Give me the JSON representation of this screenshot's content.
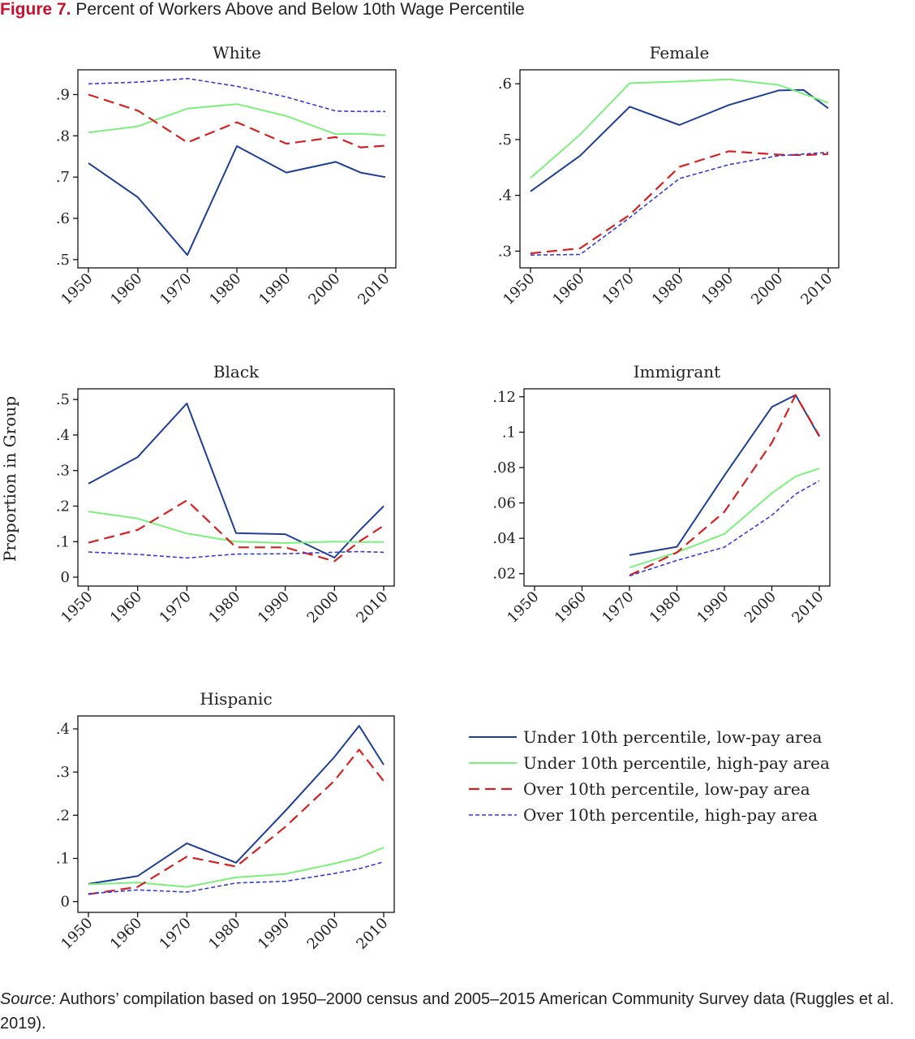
{
  "figure": {
    "label": "Figure 7.",
    "title": "Percent of Workers Above and Below 10th Wage Percentile",
    "ylabel": "Proportion in Group",
    "source_label": "Source:",
    "source_text": "Authors’ compilation based on 1950–2000 census and 2005–2015 American Community Survey data (Ruggles et al. 2019)."
  },
  "colors": {
    "under_low": "#1f3f96",
    "under_high": "#7cf07c",
    "over_low": "#d32222",
    "over_high": "#3a3ad6"
  },
  "legend": [
    {
      "label": "Under 10th percentile, low-pay area",
      "series": "under_low"
    },
    {
      "label": "Under 10th percentile, high-pay area",
      "series": "under_high"
    },
    {
      "label": "Over 10th percentile, low-pay area",
      "series": "over_low"
    },
    {
      "label": "Over 10th percentile, high-pay area",
      "series": "over_high"
    }
  ],
  "chart_data": [
    {
      "type": "line",
      "title": "White",
      "x": [
        1950,
        1960,
        1970,
        1980,
        1990,
        2000,
        2005,
        2010
      ],
      "xticks": [
        "1950",
        "1960",
        "1970",
        "1980",
        "1990",
        "2000",
        "2010"
      ],
      "yticks": [
        0.5,
        0.6,
        0.7,
        0.8,
        0.9
      ],
      "ytick_labels": [
        ".5",
        ".6",
        ".7",
        ".8",
        ".9"
      ],
      "ylim": [
        0.48,
        0.96
      ],
      "series": [
        {
          "name": "Under 10th percentile, low-pay area",
          "key": "under_low",
          "values": [
            0.734,
            0.651,
            0.511,
            0.775,
            0.711,
            0.737,
            0.711,
            0.7
          ]
        },
        {
          "name": "Under 10th percentile, high-pay area",
          "key": "under_high",
          "values": [
            0.808,
            0.823,
            0.866,
            0.877,
            0.848,
            0.804,
            0.805,
            0.801
          ]
        },
        {
          "name": "Over 10th percentile, low-pay area",
          "key": "over_low",
          "values": [
            0.9,
            0.861,
            0.784,
            0.833,
            0.781,
            0.797,
            0.772,
            0.776
          ]
        },
        {
          "name": "Over 10th percentile, high-pay area",
          "key": "over_high",
          "values": [
            0.926,
            0.93,
            0.939,
            0.92,
            0.894,
            0.86,
            0.859,
            0.859
          ]
        }
      ]
    },
    {
      "type": "line",
      "title": "Female",
      "x": [
        1950,
        1960,
        1970,
        1980,
        1990,
        2000,
        2005,
        2010
      ],
      "xticks": [
        "1950",
        "1960",
        "1970",
        "1980",
        "1990",
        "2000",
        "2010"
      ],
      "yticks": [
        0.3,
        0.4,
        0.5,
        0.6
      ],
      "ytick_labels": [
        ".3",
        ".4",
        ".5",
        ".6"
      ],
      "ylim": [
        0.27,
        0.625
      ],
      "series": [
        {
          "name": "Under 10th percentile, low-pay area",
          "key": "under_low",
          "values": [
            0.407,
            0.471,
            0.559,
            0.526,
            0.562,
            0.588,
            0.589,
            0.556
          ]
        },
        {
          "name": "Under 10th percentile, high-pay area",
          "key": "under_high",
          "values": [
            0.431,
            0.509,
            0.601,
            0.604,
            0.608,
            0.598,
            0.582,
            0.566
          ]
        },
        {
          "name": "Over 10th percentile, low-pay area",
          "key": "over_low",
          "values": [
            0.296,
            0.305,
            0.365,
            0.451,
            0.479,
            0.473,
            0.472,
            0.474
          ]
        },
        {
          "name": "Over 10th percentile, high-pay area",
          "key": "over_high",
          "values": [
            0.293,
            0.294,
            0.36,
            0.43,
            0.455,
            0.471,
            0.474,
            0.477
          ]
        }
      ]
    },
    {
      "type": "line",
      "title": "Black",
      "x": [
        1950,
        1960,
        1970,
        1980,
        1990,
        2000,
        2005,
        2010
      ],
      "xticks": [
        "1950",
        "1960",
        "1970",
        "1980",
        "1990",
        "2000",
        "2010"
      ],
      "yticks": [
        0,
        0.1,
        0.2,
        0.3,
        0.4,
        0.5
      ],
      "ytick_labels": [
        "0",
        ".1",
        ".2",
        ".3",
        ".4",
        ".5"
      ],
      "ylim": [
        -0.025,
        0.53
      ],
      "series": [
        {
          "name": "Under 10th percentile, low-pay area",
          "key": "under_low",
          "values": [
            0.263,
            0.338,
            0.489,
            0.124,
            0.121,
            0.055,
            0.13,
            0.2
          ]
        },
        {
          "name": "Under 10th percentile, high-pay area",
          "key": "under_high",
          "values": [
            0.185,
            0.165,
            0.123,
            0.1,
            0.096,
            0.1,
            0.099,
            0.099
          ]
        },
        {
          "name": "Over 10th percentile, low-pay area",
          "key": "over_low",
          "values": [
            0.097,
            0.133,
            0.216,
            0.084,
            0.084,
            0.045,
            0.1,
            0.145
          ]
        },
        {
          "name": "Over 10th percentile, high-pay area",
          "key": "over_high",
          "values": [
            0.071,
            0.064,
            0.054,
            0.065,
            0.066,
            0.07,
            0.072,
            0.07
          ]
        }
      ]
    },
    {
      "type": "line",
      "title": "Immigrant",
      "x": [
        1970,
        1980,
        1990,
        2000,
        2005,
        2010
      ],
      "xticks": [
        "1950",
        "1960",
        "1970",
        "1980",
        "1990",
        "2000",
        "2010"
      ],
      "yticks": [
        0.02,
        0.04,
        0.06,
        0.08,
        0.1,
        0.12
      ],
      "ytick_labels": [
        ".02",
        ".04",
        ".06",
        ".08",
        ".1",
        ".12"
      ],
      "ylim": [
        0.013,
        0.1245
      ],
      "series": [
        {
          "name": "Under 10th percentile, low-pay area",
          "key": "under_low",
          "values": [
            0.0305,
            0.0352,
            0.0755,
            0.1142,
            0.121,
            0.0975
          ]
        },
        {
          "name": "Under 10th percentile, high-pay area",
          "key": "under_high",
          "values": [
            0.0235,
            0.032,
            0.0425,
            0.0655,
            0.075,
            0.0795
          ]
        },
        {
          "name": "Over 10th percentile, low-pay area",
          "key": "over_low",
          "values": [
            0.019,
            0.032,
            0.055,
            0.094,
            0.121,
            0.098
          ]
        },
        {
          "name": "Over 10th percentile, high-pay area",
          "key": "over_high",
          "values": [
            0.0188,
            0.0275,
            0.035,
            0.053,
            0.065,
            0.0725
          ]
        }
      ]
    },
    {
      "type": "line",
      "title": "Hispanic",
      "x": [
        1950,
        1960,
        1970,
        1980,
        1990,
        2000,
        2005,
        2010
      ],
      "xticks": [
        "1950",
        "1960",
        "1970",
        "1980",
        "1990",
        "2000",
        "2010"
      ],
      "yticks": [
        0,
        0.1,
        0.2,
        0.3,
        0.4
      ],
      "ytick_labels": [
        "0",
        ".1",
        ".2",
        ".3",
        ".4"
      ],
      "ylim": [
        -0.025,
        0.43
      ],
      "series": [
        {
          "name": "Under 10th percentile, low-pay area",
          "key": "under_low",
          "values": [
            0.041,
            0.059,
            0.135,
            0.09,
            0.21,
            0.335,
            0.407,
            0.317
          ]
        },
        {
          "name": "Under 10th percentile, high-pay area",
          "key": "under_high",
          "values": [
            0.04,
            0.044,
            0.034,
            0.056,
            0.064,
            0.088,
            0.102,
            0.125
          ]
        },
        {
          "name": "Over 10th percentile, low-pay area",
          "key": "over_low",
          "values": [
            0.017,
            0.034,
            0.104,
            0.081,
            0.173,
            0.28,
            0.352,
            0.279
          ]
        },
        {
          "name": "Over 10th percentile, high-pay area",
          "key": "over_high",
          "values": [
            0.018,
            0.027,
            0.022,
            0.043,
            0.047,
            0.065,
            0.076,
            0.092
          ]
        }
      ]
    }
  ]
}
